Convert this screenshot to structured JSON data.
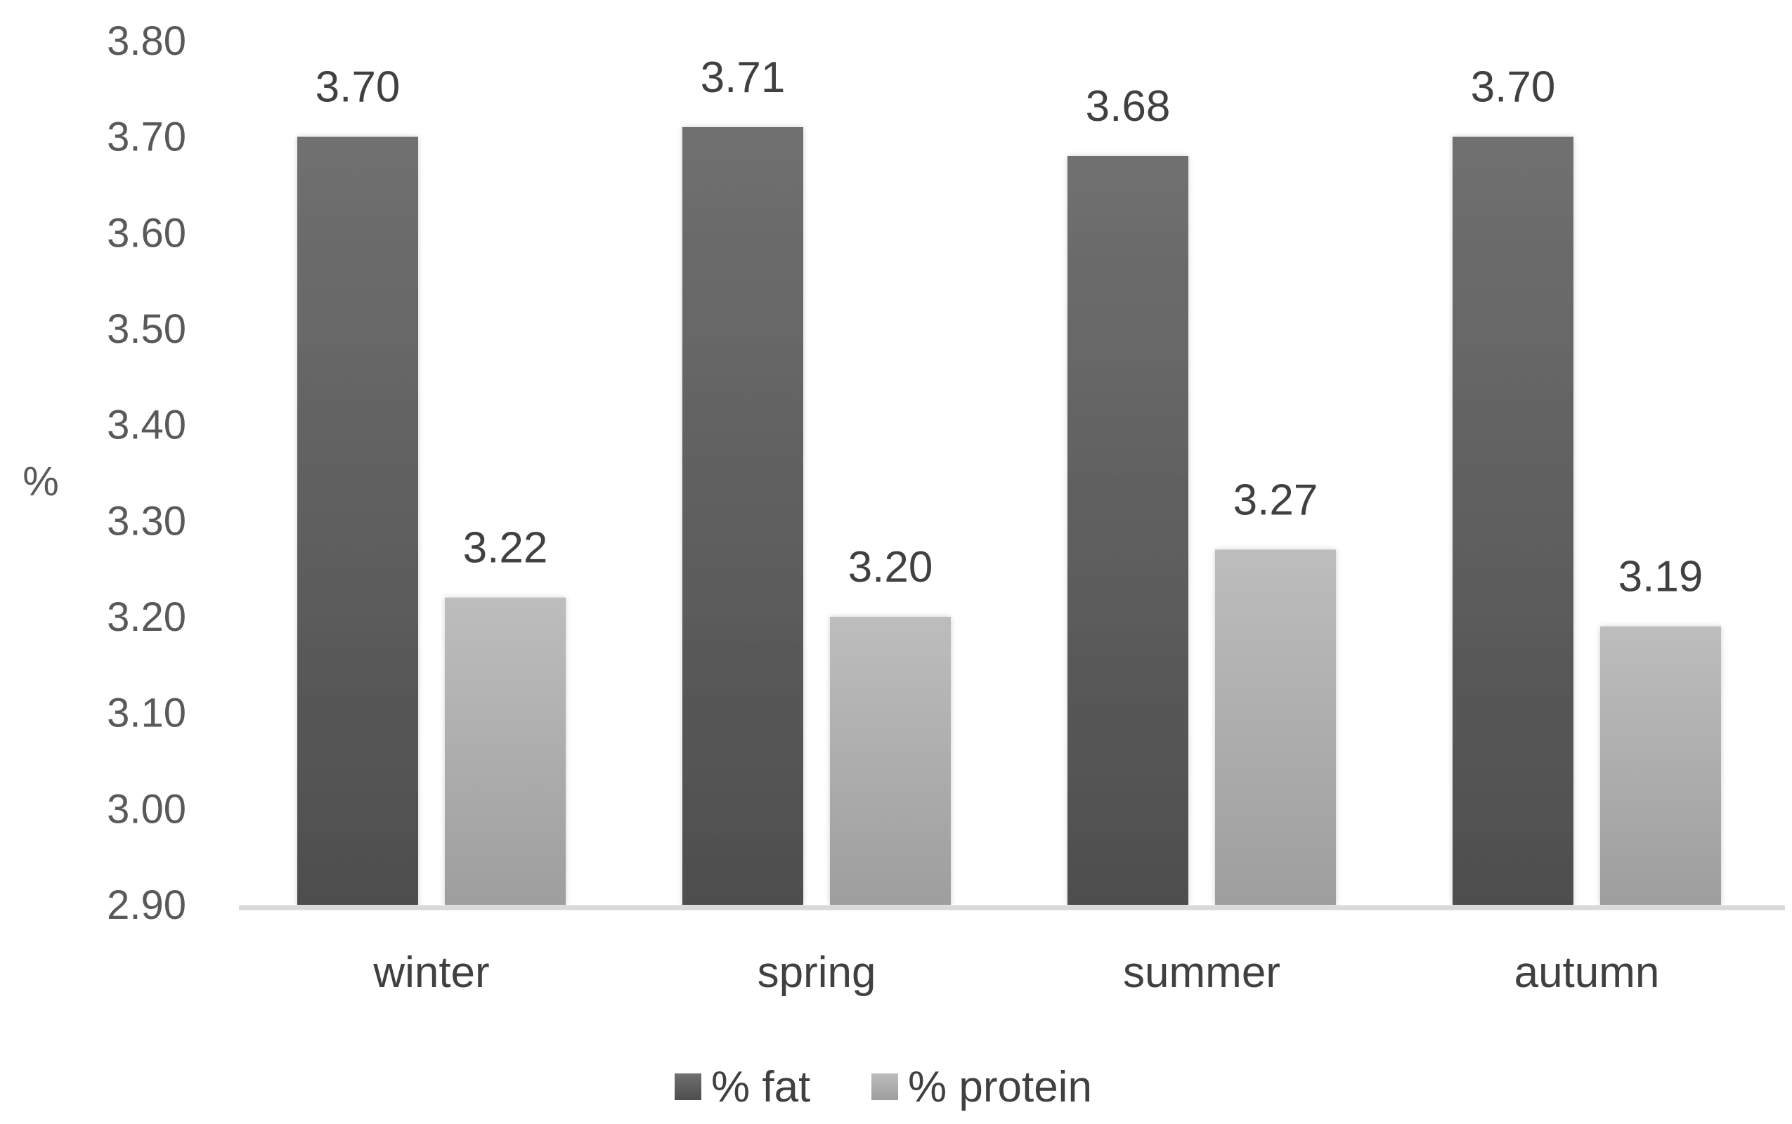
{
  "chart_data": {
    "type": "bar",
    "categories": [
      "winter",
      "spring",
      "summer",
      "autumn"
    ],
    "series": [
      {
        "name": "% fat",
        "values": [
          3.7,
          3.71,
          3.68,
          3.7
        ],
        "color": "#5a5a5a",
        "labels": [
          "3.70",
          "3.71",
          "3.68",
          "3.70"
        ]
      },
      {
        "name": "% protein",
        "values": [
          3.22,
          3.2,
          3.27,
          3.19
        ],
        "color": "#b0b0b0",
        "labels": [
          "3.22",
          "3.20",
          "3.27",
          "3.19"
        ]
      }
    ],
    "ylabel": "%",
    "xlabel": "",
    "ylim": [
      2.9,
      3.8
    ],
    "yticks": [
      "2.90",
      "3.00",
      "3.10",
      "3.20",
      "3.30",
      "3.40",
      "3.50",
      "3.60",
      "3.70",
      "3.80"
    ],
    "grid": false,
    "legend_position": "bottom"
  }
}
